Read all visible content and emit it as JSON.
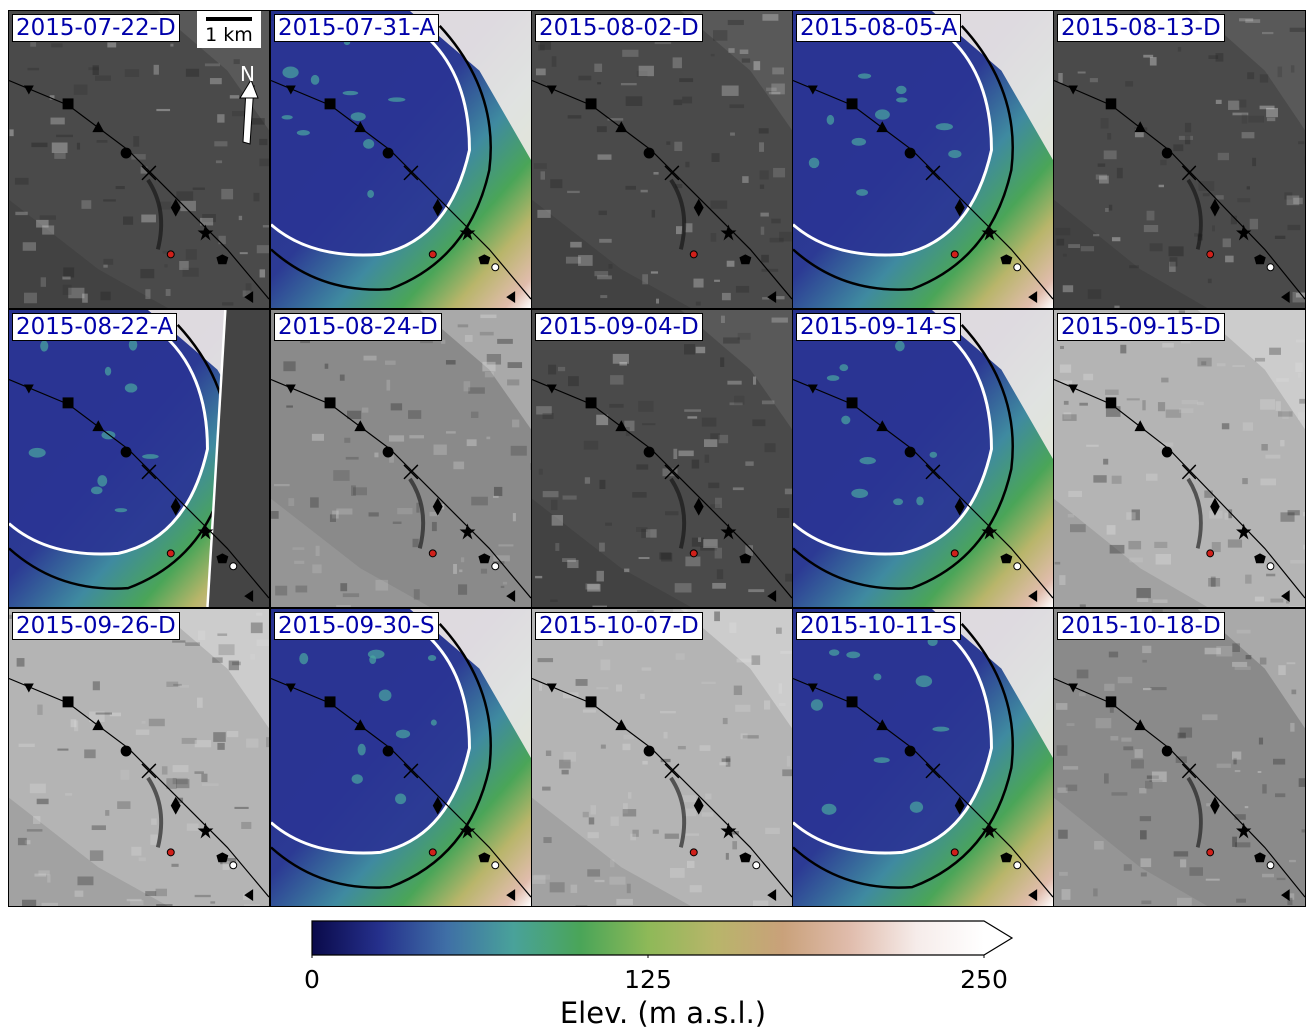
{
  "panels": [
    {
      "label": "2015-07-22-D",
      "kind": "sar",
      "tone": "dark"
    },
    {
      "label": "2015-07-31-A",
      "kind": "dem"
    },
    {
      "label": "2015-08-02-D",
      "kind": "sar",
      "tone": "dark"
    },
    {
      "label": "2015-08-05-A",
      "kind": "dem"
    },
    {
      "label": "2015-08-13-D",
      "kind": "sar",
      "tone": "dark"
    },
    {
      "label": "2015-08-22-A",
      "kind": "dem",
      "gap": true
    },
    {
      "label": "2015-08-24-D",
      "kind": "sar",
      "tone": "mid"
    },
    {
      "label": "2015-09-04-D",
      "kind": "sar",
      "tone": "dark"
    },
    {
      "label": "2015-09-14-S",
      "kind": "dem"
    },
    {
      "label": "2015-09-15-D",
      "kind": "sar",
      "tone": "light"
    },
    {
      "label": "2015-09-26-D",
      "kind": "sar",
      "tone": "light"
    },
    {
      "label": "2015-09-30-S",
      "kind": "dem"
    },
    {
      "label": "2015-10-07-D",
      "kind": "sar",
      "tone": "light"
    },
    {
      "label": "2015-10-11-S",
      "kind": "dem"
    },
    {
      "label": "2015-10-18-D",
      "kind": "sar",
      "tone": "mid"
    }
  ],
  "scale_bar": {
    "label": "1 km"
  },
  "north_arrow": {
    "label": "N"
  },
  "colorbar": {
    "title": "Elev. (m a.s.l.)",
    "min": 0,
    "max": 250,
    "ticks": [
      {
        "value": 0,
        "label": "0"
      },
      {
        "value": 125,
        "label": "125"
      },
      {
        "value": 250,
        "label": "250"
      }
    ],
    "extend": "max",
    "colormap": "gist_earth",
    "colors": [
      "#0a0a4a",
      "#25308c",
      "#3f6fa6",
      "#49a29a",
      "#4aa558",
      "#8eb958",
      "#b8b56a",
      "#c9a17a",
      "#e0bcac",
      "#f6ecea",
      "#ffffff"
    ]
  },
  "colors": {
    "label_text": "#0000aa",
    "lake_outline": "#ffffff",
    "contour": "#000000",
    "red_marker": "#d0201a"
  },
  "profile_markers": [
    "triangle-down",
    "square",
    "triangle-up",
    "circle",
    "x",
    "diamond",
    "star",
    "pentagon",
    "triangle-left"
  ]
}
